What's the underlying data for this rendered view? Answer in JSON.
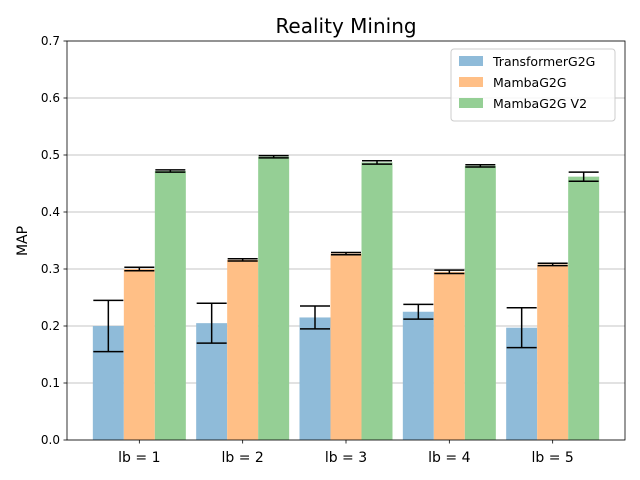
{
  "chart_data": {
    "type": "bar",
    "title": "Reality Mining",
    "xlabel": "",
    "ylabel": "MAP",
    "ylim": [
      0,
      0.7
    ],
    "yticks": [
      0.0,
      0.1,
      0.2,
      0.3,
      0.4,
      0.5,
      0.6,
      0.7
    ],
    "ytick_labels": [
      "0.0",
      "0.1",
      "0.2",
      "0.3",
      "0.4",
      "0.5",
      "0.6",
      "0.7"
    ],
    "grid": "y",
    "legend_position": "top-right",
    "categories": [
      "lb = 1",
      "lb = 2",
      "lb = 3",
      "lb = 4",
      "lb = 5"
    ],
    "series": [
      {
        "name": "TransformerG2G",
        "color": "#8fbbd9",
        "values": [
          0.2,
          0.205,
          0.215,
          0.225,
          0.197
        ],
        "errors": [
          0.045,
          0.035,
          0.02,
          0.013,
          0.035
        ]
      },
      {
        "name": "MambaG2G",
        "color": "#ffbf86",
        "values": [
          0.3,
          0.316,
          0.327,
          0.295,
          0.308
        ],
        "errors": [
          0.003,
          0.002,
          0.002,
          0.003,
          0.002
        ]
      },
      {
        "name": "MambaG2G V2",
        "color": "#95cf95",
        "values": [
          0.472,
          0.497,
          0.487,
          0.481,
          0.462
        ],
        "errors": [
          0.002,
          0.002,
          0.003,
          0.002,
          0.008
        ]
      }
    ]
  }
}
